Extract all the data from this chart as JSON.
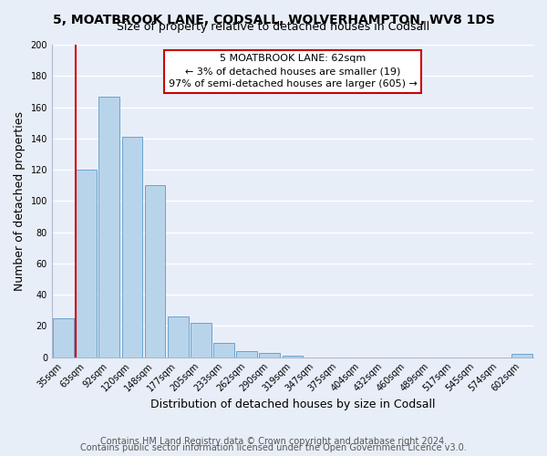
{
  "title": "5, MOATBROOK LANE, CODSALL, WOLVERHAMPTON, WV8 1DS",
  "subtitle": "Size of property relative to detached houses in Codsall",
  "xlabel": "Distribution of detached houses by size in Codsall",
  "ylabel": "Number of detached properties",
  "bar_labels": [
    "35sqm",
    "63sqm",
    "92sqm",
    "120sqm",
    "148sqm",
    "177sqm",
    "205sqm",
    "233sqm",
    "262sqm",
    "290sqm",
    "319sqm",
    "347sqm",
    "375sqm",
    "404sqm",
    "432sqm",
    "460sqm",
    "489sqm",
    "517sqm",
    "545sqm",
    "574sqm",
    "602sqm"
  ],
  "bar_values": [
    25,
    120,
    167,
    141,
    110,
    26,
    22,
    9,
    4,
    3,
    1,
    0,
    0,
    0,
    0,
    0,
    0,
    0,
    0,
    0,
    2
  ],
  "bar_color": "#b8d4eb",
  "bar_edge_color": "#6aa3cc",
  "marker_line_color": "#cc0000",
  "annotation_line1": "5 MOATBROOK LANE: 62sqm",
  "annotation_line2": "← 3% of detached houses are smaller (19)",
  "annotation_line3": "97% of semi-detached houses are larger (605) →",
  "annotation_box_color": "#ffffff",
  "annotation_box_edge": "#cc0000",
  "ylim": [
    0,
    200
  ],
  "yticks": [
    0,
    20,
    40,
    60,
    80,
    100,
    120,
    140,
    160,
    180,
    200
  ],
  "footer1": "Contains HM Land Registry data © Crown copyright and database right 2024.",
  "footer2": "Contains public sector information licensed under the Open Government Licence v3.0.",
  "bg_color": "#e8eef8",
  "grid_color": "#ffffff",
  "title_fontsize": 10,
  "subtitle_fontsize": 9,
  "axis_label_fontsize": 9,
  "tick_fontsize": 7,
  "annotation_fontsize": 8,
  "footer_fontsize": 7
}
